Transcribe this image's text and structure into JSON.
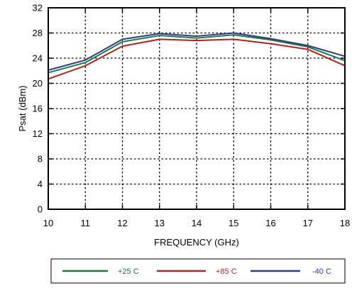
{
  "chart_data": {
    "type": "line",
    "title": "",
    "xlabel": "FREQUENCY (GHz)",
    "ylabel": "Psat (dBm)",
    "xlim": [
      10,
      18
    ],
    "ylim": [
      0,
      32
    ],
    "xticks": [
      10,
      11,
      12,
      13,
      14,
      15,
      16,
      17,
      18
    ],
    "yticks": [
      0,
      4,
      8,
      12,
      16,
      20,
      24,
      28,
      32
    ],
    "grid": "dotted",
    "legend_position": "bottom",
    "x": [
      10,
      11,
      12,
      13,
      14,
      15,
      16,
      17,
      18
    ],
    "series": [
      {
        "name": "+25 C",
        "color": "#1e7a3c",
        "values": [
          21.7,
          23.3,
          26.6,
          27.6,
          27.2,
          27.7,
          26.9,
          25.8,
          23.6
        ]
      },
      {
        "name": "+85 C",
        "color": "#b22222",
        "values": [
          20.7,
          22.8,
          25.9,
          27.0,
          26.8,
          27.0,
          26.3,
          25.4,
          22.8
        ]
      },
      {
        "name": "-40 C",
        "color": "#2e3a8c",
        "values": [
          22.1,
          23.7,
          27.0,
          27.9,
          27.5,
          28.0,
          27.1,
          26.0,
          24.3
        ]
      }
    ]
  }
}
